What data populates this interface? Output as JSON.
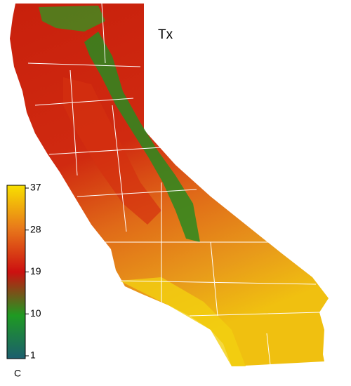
{
  "title": "Tx",
  "colorbar": {
    "unit": "C",
    "range": [
      1,
      37
    ],
    "ticks": [
      37,
      28,
      19,
      10,
      1
    ],
    "colors": [
      "#1b5e6e",
      "#1f9a22",
      "#cc1010",
      "#e8781a",
      "#f8e000"
    ]
  }
}
